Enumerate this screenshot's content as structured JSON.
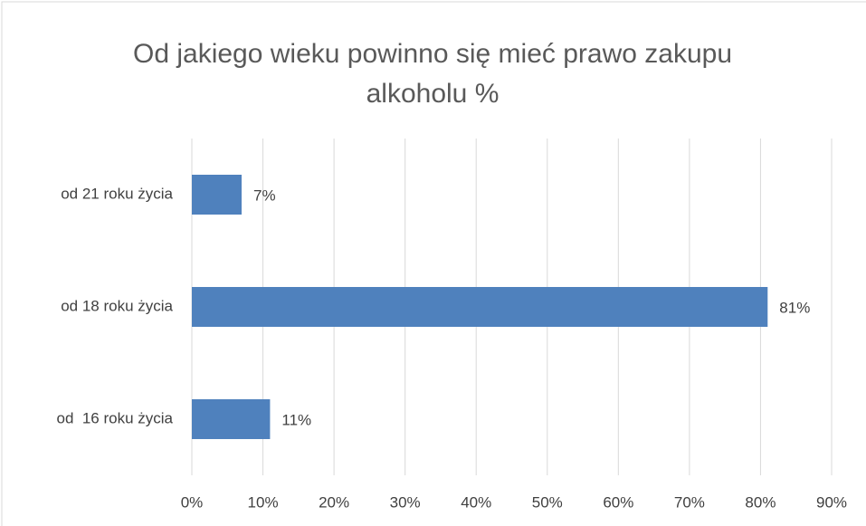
{
  "chart_data": {
    "type": "bar",
    "orientation": "horizontal",
    "title": "Od jakiego wieku powinno się mieć prawo zakupu alkoholu %",
    "categories": [
      "od 21 roku życia",
      "od 18 roku życia",
      "od  16 roku życia"
    ],
    "values": [
      7,
      81,
      11
    ],
    "value_labels": [
      "7%",
      "81%",
      "11%"
    ],
    "color": "#4f81bd",
    "xlim": [
      0,
      90
    ],
    "xticks": [
      {
        "value": 0,
        "label": "0%"
      },
      {
        "value": 10,
        "label": "10%"
      },
      {
        "value": 20,
        "label": "20%"
      },
      {
        "value": 30,
        "label": "30%"
      },
      {
        "value": 40,
        "label": "40%"
      },
      {
        "value": 50,
        "label": "50%"
      },
      {
        "value": 60,
        "label": "60%"
      },
      {
        "value": 70,
        "label": "70%"
      },
      {
        "value": 80,
        "label": "80%"
      },
      {
        "value": 90,
        "label": "90%"
      }
    ],
    "grid": true
  }
}
